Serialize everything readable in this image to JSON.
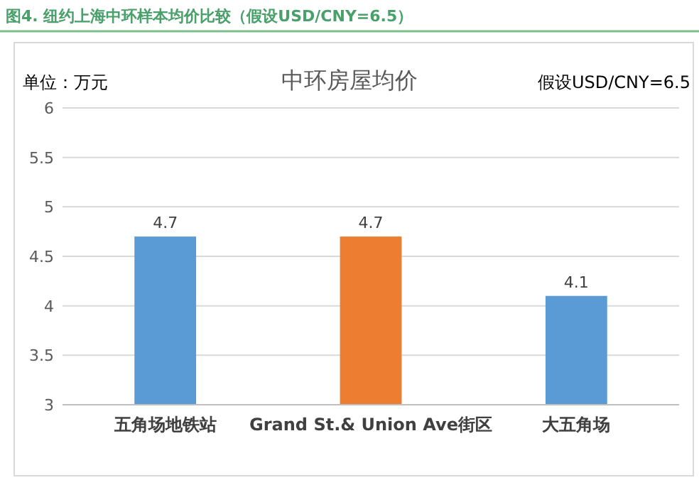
{
  "chart_data": {
    "type": "bar",
    "title": "图4. 纽约上海中环样本均价比较（假设USD/CNY=6.5）",
    "subtitle": "中环房屋均价",
    "annotations": [
      "单位：万元",
      "假设USD/CNY=6.5"
    ],
    "categories": [
      "五角场地铁站",
      "Grand St.& Union Ave街区",
      "大五角场"
    ],
    "values": [
      4.7,
      4.7,
      4.1
    ],
    "colors": [
      "#5b9bd5",
      "#ed7d31",
      "#5b9bd5"
    ],
    "ylim": [
      3,
      6
    ],
    "yticks": [
      3,
      3.5,
      4,
      4.5,
      5,
      5.5,
      6
    ],
    "grid": "y",
    "data_labels": true
  }
}
